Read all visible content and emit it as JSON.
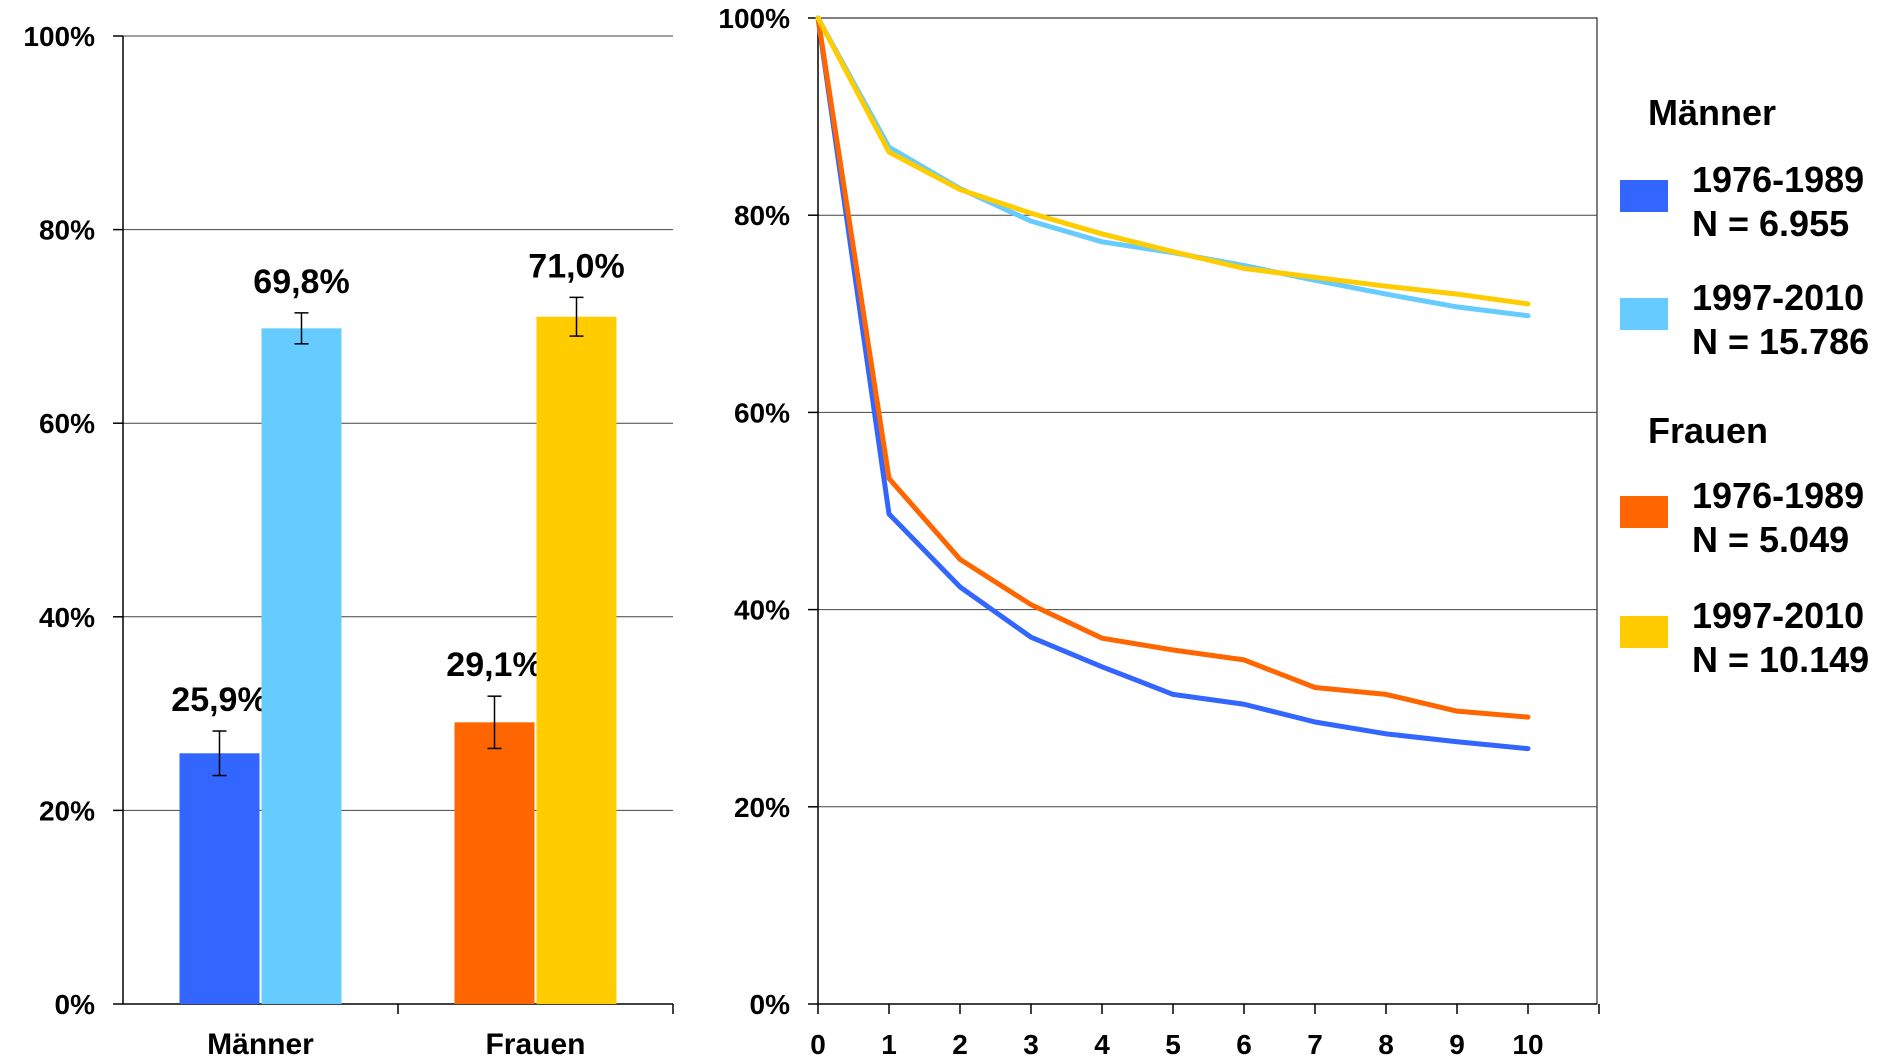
{
  "colors": {
    "maenner_1976": "#3366FF",
    "maenner_1997": "#66CCFF",
    "frauen_1976": "#FF6600",
    "frauen_1997": "#FFCC00"
  },
  "legend": {
    "groups": [
      {
        "title": "Männer",
        "items": [
          {
            "line1": "1976-1989",
            "line2": "N = 6.955",
            "color": "#3366FF"
          },
          {
            "line1": "1997-2010",
            "line2": "N = 15.786",
            "color": "#66CCFF"
          }
        ]
      },
      {
        "title": "Frauen",
        "items": [
          {
            "line1": "1976-1989",
            "line2": "N = 5.049",
            "color": "#FF6600"
          },
          {
            "line1": "1997-2010",
            "line2": "N = 10.149",
            "color": "#FFCC00"
          }
        ]
      }
    ]
  },
  "chart_data": [
    {
      "type": "bar",
      "categories": [
        "Männer",
        "Frauen"
      ],
      "series": [
        {
          "values": [
            25.9,
            29.1
          ],
          "labels": [
            "25,9%",
            "29,1%"
          ],
          "error": [
            2.3,
            2.7
          ],
          "colors": [
            "#3366FF",
            "#FF6600"
          ]
        },
        {
          "values": [
            69.8,
            71.0
          ],
          "labels": [
            "69,8%",
            "71,0%"
          ],
          "error": [
            1.6,
            2.0
          ],
          "colors": [
            "#66CCFF",
            "#FFCC00"
          ]
        }
      ],
      "ylim": [
        0,
        100
      ],
      "yticks": [
        "0%",
        "20%",
        "40%",
        "60%",
        "80%",
        "100%"
      ],
      "ytick_values": [
        0,
        20,
        40,
        60,
        80,
        100
      ],
      "grid": true
    },
    {
      "type": "line",
      "x": [
        0,
        1,
        2,
        3,
        4,
        5,
        6,
        7,
        8,
        9,
        10
      ],
      "series": [
        {
          "key": "maenner_1976",
          "values": [
            100,
            49.7,
            42.3,
            37.2,
            34.2,
            31.4,
            30.4,
            28.6,
            27.4,
            26.6,
            25.9
          ]
        },
        {
          "key": "frauen_1976",
          "values": [
            100,
            53.3,
            45.1,
            40.5,
            37.1,
            35.9,
            34.9,
            32.1,
            31.4,
            29.7,
            29.1
          ]
        },
        {
          "key": "maenner_1997",
          "values": [
            100,
            86.9,
            82.7,
            79.4,
            77.3,
            76.2,
            74.9,
            73.4,
            72.0,
            70.7,
            69.8
          ]
        },
        {
          "key": "frauen_1997",
          "values": [
            100,
            86.4,
            82.6,
            80.2,
            78.1,
            76.3,
            74.6,
            73.7,
            72.8,
            72.0,
            71.0
          ]
        }
      ],
      "xticks": [
        "0",
        "1",
        "2",
        "3",
        "4",
        "5",
        "6",
        "7",
        "8",
        "9",
        "10"
      ],
      "ylim": [
        0,
        100
      ],
      "yticks": [
        "0%",
        "20%",
        "40%",
        "60%",
        "80%",
        "100%"
      ],
      "ytick_values": [
        0,
        20,
        40,
        60,
        80,
        100
      ],
      "grid": true
    }
  ]
}
